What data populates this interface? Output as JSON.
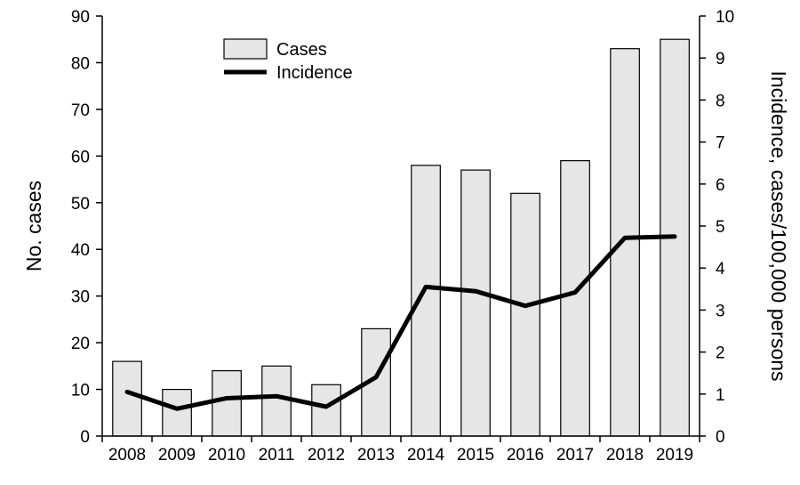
{
  "chart_data": {
    "type": "bar",
    "categories": [
      "2008",
      "2009",
      "2010",
      "2011",
      "2012",
      "2013",
      "2014",
      "2015",
      "2016",
      "2017",
      "2018",
      "2019"
    ],
    "series": [
      {
        "name": "Cases",
        "type": "bar",
        "axis": "left",
        "values": [
          16,
          10,
          14,
          15,
          11,
          23,
          58,
          57,
          52,
          59,
          83,
          85
        ],
        "color": "#e6e6e6"
      },
      {
        "name": "Incidence",
        "type": "line",
        "axis": "right",
        "values": [
          1.05,
          0.65,
          0.9,
          0.95,
          0.7,
          1.4,
          3.55,
          3.45,
          3.1,
          3.42,
          4.72,
          4.75
        ],
        "color": "#000000"
      }
    ],
    "ylabel": "No. cases",
    "y2label": "Incidence, cases/100,000 persons",
    "xlabel": "",
    "ylim": [
      0,
      90
    ],
    "y2lim": [
      0,
      10
    ],
    "yticks": [
      "0",
      "10",
      "20",
      "30",
      "40",
      "50",
      "60",
      "70",
      "80",
      "90"
    ],
    "y2ticks": [
      "0",
      "1",
      "2",
      "3",
      "4",
      "5",
      "6",
      "7",
      "8",
      "9",
      "10"
    ],
    "legend": {
      "position": "top-left",
      "entries": [
        "Cases",
        "Incidence"
      ]
    },
    "grid": false
  }
}
